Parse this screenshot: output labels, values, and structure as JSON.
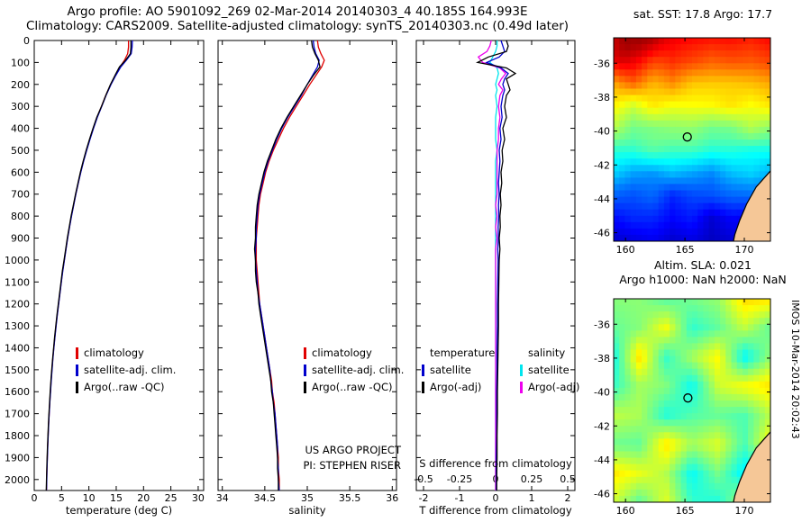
{
  "header": {
    "line1": "Argo profile: AO 5901092_269 02-Mar-2014 20140303_4 40.185S 164.993E",
    "line2": "Climatology: CARS2009. Satellite-adjusted climatology: synTS_20140303.nc (0.49d later)"
  },
  "annotations": {
    "project_line1": "US ARGO PROJECT",
    "project_line2": "PI: STEPHEN RISER",
    "vertical_stamp": "IMOS 10-Mar-2014 20:02:43"
  },
  "colors": {
    "climatology": "#e00000",
    "satellite": "#0000cc",
    "argo": "#000000",
    "sat_salinity": "#00e5ee",
    "argo_salinity": "#ee00ee",
    "land": "#f5c797",
    "coast": "#000000",
    "axis": "#000000"
  },
  "chart_data": [
    {
      "id": "temperature_profile",
      "type": "line",
      "xlabel": "temperature (deg C)",
      "ylabel": "depth",
      "xlim": [
        0,
        31
      ],
      "xticks": [
        0,
        5,
        10,
        15,
        20,
        25,
        30
      ],
      "ylim": [
        0,
        2050
      ],
      "yticks": [
        0,
        100,
        200,
        300,
        400,
        500,
        600,
        700,
        800,
        900,
        1000,
        1100,
        1200,
        1300,
        1400,
        1500,
        1600,
        1700,
        1800,
        1900,
        2000
      ],
      "ytick_labels": true,
      "depths": [
        0,
        30,
        60,
        90,
        120,
        160,
        200,
        250,
        300,
        350,
        400,
        450,
        500,
        550,
        600,
        650,
        700,
        750,
        800,
        850,
        900,
        950,
        1000,
        1050,
        1100,
        1150,
        1200,
        1250,
        1300,
        1350,
        1400,
        1450,
        1500,
        1550,
        1600,
        1650,
        1700,
        1750,
        1800,
        1850,
        1900,
        1950,
        2000,
        2050
      ],
      "series": [
        {
          "name": "climatology",
          "color": "climatology",
          "values": [
            17.25,
            17.25,
            17.1,
            16.5,
            15.7,
            14.8,
            14.0,
            13.1,
            12.3,
            11.5,
            10.8,
            10.15,
            9.55,
            9.0,
            8.5,
            8.05,
            7.6,
            7.2,
            6.8,
            6.45,
            6.1,
            5.8,
            5.5,
            5.2,
            4.95,
            4.7,
            4.45,
            4.2,
            3.98,
            3.77,
            3.58,
            3.4,
            3.24,
            3.09,
            2.96,
            2.84,
            2.73,
            2.63,
            2.54,
            2.46,
            2.39,
            2.33,
            2.28,
            2.24
          ]
        },
        {
          "name": "satellite-adj. clim.",
          "color": "satellite",
          "values": [
            17.95,
            17.9,
            17.75,
            16.85,
            15.85,
            14.9,
            14.05,
            13.15,
            12.35,
            11.55,
            10.85,
            10.2,
            9.6,
            9.03,
            8.53,
            8.07,
            7.62,
            7.22,
            6.82,
            6.47,
            6.12,
            5.82,
            5.52,
            5.22,
            4.97,
            4.72,
            4.47,
            4.22,
            4.0,
            3.79,
            3.6,
            3.42,
            3.26,
            3.11,
            2.98,
            2.86,
            2.74,
            2.64,
            2.55,
            2.47,
            2.4,
            2.34,
            2.29,
            2.25
          ]
        },
        {
          "name": "Argo(..raw -QC)",
          "color": "argo",
          "values": [
            17.7,
            17.7,
            17.6,
            16.7,
            15.6,
            14.75,
            13.95,
            13.1,
            12.3,
            11.45,
            10.75,
            10.1,
            9.5,
            8.95,
            8.45,
            8.0,
            7.55,
            7.15,
            6.75,
            6.4,
            6.05,
            5.75,
            5.45,
            5.15,
            4.9,
            4.65,
            4.4,
            4.16,
            3.94,
            3.73,
            3.54,
            3.36,
            3.2,
            3.05,
            2.92,
            2.8,
            2.69,
            2.59,
            2.5,
            2.42,
            2.35,
            2.29,
            2.24,
            2.2
          ]
        }
      ],
      "legend": [
        {
          "label": "climatology",
          "color": "climatology"
        },
        {
          "label": "satellite-adj. clim.",
          "color": "satellite"
        },
        {
          "label": "Argo(..raw -QC)",
          "color": "argo"
        }
      ]
    },
    {
      "id": "salinity_profile",
      "type": "line",
      "xlabel": "salinity",
      "xlim": [
        33.95,
        36.05
      ],
      "xticks": [
        34,
        34.5,
        35,
        35.5,
        36
      ],
      "ylim": [
        0,
        2050
      ],
      "yticks": [
        0,
        100,
        200,
        300,
        400,
        500,
        600,
        700,
        800,
        900,
        1000,
        1100,
        1200,
        1300,
        1400,
        1500,
        1600,
        1700,
        1800,
        1900,
        2000
      ],
      "ytick_labels": false,
      "depths": [
        0,
        30,
        60,
        90,
        120,
        160,
        200,
        250,
        300,
        350,
        400,
        450,
        500,
        550,
        600,
        650,
        700,
        750,
        800,
        850,
        900,
        950,
        1000,
        1050,
        1100,
        1150,
        1200,
        1250,
        1300,
        1350,
        1400,
        1450,
        1500,
        1550,
        1600,
        1650,
        1700,
        1750,
        1800,
        1850,
        1900,
        1950,
        2000,
        2050
      ],
      "series": [
        {
          "name": "climatology",
          "color": "climatology",
          "values": [
            35.12,
            35.13,
            35.16,
            35.2,
            35.17,
            35.1,
            35.03,
            34.95,
            34.87,
            34.79,
            34.72,
            34.66,
            34.6,
            34.55,
            34.51,
            34.48,
            34.45,
            34.43,
            34.42,
            34.41,
            34.4,
            34.4,
            34.4,
            34.41,
            34.42,
            34.43,
            34.44,
            34.46,
            34.48,
            34.5,
            34.52,
            34.54,
            34.56,
            34.58,
            34.59,
            34.61,
            34.62,
            34.63,
            34.64,
            34.65,
            34.66,
            34.66,
            34.67,
            34.67
          ]
        },
        {
          "name": "satellite-adj. clim.",
          "color": "satellite",
          "values": [
            35.07,
            35.08,
            35.1,
            35.14,
            35.12,
            35.06,
            35.0,
            34.93,
            34.85,
            34.77,
            34.7,
            34.64,
            34.59,
            34.54,
            34.5,
            34.47,
            34.44,
            34.42,
            34.41,
            34.4,
            34.4,
            34.39,
            34.39,
            34.4,
            34.41,
            34.42,
            34.44,
            34.46,
            34.48,
            34.5,
            34.52,
            34.54,
            34.56,
            34.57,
            34.59,
            34.6,
            34.62,
            34.63,
            34.64,
            34.65,
            34.65,
            34.66,
            34.66,
            34.67
          ]
        },
        {
          "name": "Argo(..raw -QC)",
          "color": "argo",
          "values": [
            35.05,
            35.06,
            35.09,
            35.13,
            35.15,
            35.07,
            35.0,
            34.92,
            34.84,
            34.76,
            34.69,
            34.63,
            34.58,
            34.53,
            34.49,
            34.46,
            34.43,
            34.41,
            34.4,
            34.39,
            34.39,
            34.38,
            34.39,
            34.39,
            34.4,
            34.42,
            34.43,
            34.45,
            34.47,
            34.49,
            34.51,
            34.53,
            34.55,
            34.57,
            34.58,
            34.6,
            34.61,
            34.62,
            34.63,
            34.64,
            34.65,
            34.65,
            34.66,
            34.66
          ]
        }
      ],
      "legend": [
        {
          "label": "climatology",
          "color": "climatology"
        },
        {
          "label": "satellite-adj. clim.",
          "color": "satellite"
        },
        {
          "label": "Argo(..raw -QC)",
          "color": "argo"
        }
      ]
    },
    {
      "id": "difference_profile",
      "type": "line",
      "xlabel": "T difference from climatology",
      "xlabel2": "S difference from climatology",
      "xlim": [
        -2.2,
        2.2
      ],
      "xticks": [
        -2,
        -1,
        0,
        1,
        2
      ],
      "xlim2": [
        -0.55,
        0.55
      ],
      "xticks2": [
        -0.5,
        -0.25,
        0,
        0.25,
        0.5
      ],
      "ylim": [
        0,
        2050
      ],
      "yticks": [
        0,
        100,
        200,
        300,
        400,
        500,
        600,
        700,
        800,
        900,
        1000,
        1100,
        1200,
        1300,
        1400,
        1500,
        1600,
        1700,
        1800,
        1900,
        2000
      ],
      "ytick_labels": false,
      "depths": [
        0,
        25,
        50,
        75,
        100,
        125,
        150,
        175,
        200,
        225,
        250,
        300,
        350,
        400,
        450,
        500,
        550,
        600,
        650,
        700,
        750,
        800,
        850,
        900,
        950,
        1000,
        1100,
        1200,
        1300,
        1400,
        1500,
        1600,
        1700,
        1800,
        1900,
        2000,
        2050
      ],
      "series": [
        {
          "name": "salinity satellite",
          "color": "sat_salinity",
          "axis": "secondary",
          "values": [
            0.01,
            0.01,
            0.0,
            -0.02,
            -0.04,
            0.01,
            0.02,
            0.01,
            0.0,
            0.01,
            0.0,
            0.01,
            0.0,
            0.0,
            0.0,
            0.01,
            0.0,
            0.0,
            0.0,
            0.0,
            0.0,
            0.0,
            0.0,
            0.0,
            0.0,
            0.0,
            0.0,
            0.0,
            0.0,
            0.0,
            0.0,
            0.0,
            0.0,
            0.0,
            0.0,
            0.0,
            0.0
          ]
        },
        {
          "name": "salinity Argo(-adj)",
          "color": "argo_salinity",
          "axis": "secondary",
          "values": [
            -0.03,
            -0.04,
            -0.06,
            -0.12,
            -0.09,
            0.03,
            0.07,
            0.04,
            0.02,
            0.05,
            0.03,
            0.02,
            0.03,
            0.02,
            0.02,
            0.01,
            0.01,
            0.01,
            0.01,
            0.01,
            0.0,
            0.01,
            0.0,
            0.01,
            0.0,
            0.0,
            0.0,
            0.0,
            0.0,
            0.0,
            0.0,
            0.0,
            0.0,
            0.0,
            0.0,
            0.0,
            0.0
          ]
        },
        {
          "name": "temperature satellite",
          "color": "satellite",
          "values": [
            0.15,
            0.2,
            0.25,
            0.1,
            -0.25,
            0.15,
            0.35,
            0.25,
            0.2,
            0.25,
            0.2,
            0.15,
            0.18,
            0.12,
            0.15,
            0.1,
            0.12,
            0.1,
            0.08,
            0.1,
            0.08,
            0.09,
            0.07,
            0.08,
            0.06,
            0.07,
            0.06,
            0.05,
            0.05,
            0.04,
            0.04,
            0.03,
            0.03,
            0.03,
            0.02,
            0.02,
            0.02
          ]
        },
        {
          "name": "temperature Argo(-adj)",
          "color": "argo",
          "values": [
            0.3,
            0.35,
            0.3,
            -0.2,
            -0.5,
            0.3,
            0.55,
            0.3,
            0.35,
            0.4,
            0.3,
            0.25,
            0.3,
            0.2,
            0.25,
            0.18,
            0.2,
            0.15,
            0.17,
            0.13,
            0.15,
            0.12,
            0.13,
            0.1,
            0.12,
            0.1,
            0.09,
            0.08,
            0.08,
            0.07,
            0.06,
            0.05,
            0.05,
            0.04,
            0.04,
            0.03,
            0.03
          ]
        }
      ],
      "legend_cols": [
        {
          "header": "temperature",
          "items": [
            {
              "label": "satellite",
              "color": "satellite"
            },
            {
              "label": "Argo(-adj)",
              "color": "argo"
            }
          ]
        },
        {
          "header": "salinity",
          "items": [
            {
              "label": "satellite",
              "color": "sat_salinity"
            },
            {
              "label": "Argo(-adj)",
              "color": "argo_salinity"
            }
          ]
        }
      ]
    },
    {
      "id": "sst_map",
      "type": "heatmap",
      "title": "sat. SST: 17.8 Argo: 17.7",
      "sat_sst": 17.8,
      "argo_sst": 17.7,
      "lon_range": [
        159.0,
        172.2
      ],
      "lat_range": [
        -34.5,
        -46.5
      ],
      "lon_ticks": [
        160,
        165,
        170
      ],
      "lat_ticks": [
        -36,
        -38,
        -40,
        -42,
        -44,
        -46
      ],
      "domain": [
        6,
        23
      ],
      "base_rows": [
        [
          -34.5,
          20.8
        ],
        [
          -36,
          19.6
        ],
        [
          -37.5,
          17.6
        ],
        [
          -39,
          15.8
        ],
        [
          -40.5,
          14.2
        ],
        [
          -42,
          11.8
        ],
        [
          -43.5,
          9.6
        ],
        [
          -45,
          8.2
        ],
        [
          -46.5,
          7.2
        ]
      ],
      "blobs": [
        [
          160.3,
          -34.8,
          2.4,
          2.0
        ]
      ],
      "noise_amp": 0.7,
      "noise_grid": [
        9,
        10
      ],
      "seed": 7,
      "marker": [
        165.2,
        -40.35
      ],
      "land": [
        [
          172.4,
          -42.2
        ],
        [
          171.0,
          -43.3
        ],
        [
          170.2,
          -44.3
        ],
        [
          169.6,
          -45.3
        ],
        [
          169.2,
          -46.1
        ],
        [
          169.0,
          -46.8
        ],
        [
          172.4,
          -46.8
        ]
      ]
    },
    {
      "id": "sla_map",
      "type": "heatmap",
      "title_line1": "Altim. SLA: 0.021",
      "title_line2": "Argo h1000: NaN h2000: NaN",
      "altim_sla": 0.021,
      "argo_h1000": "NaN",
      "argo_h2000": "NaN",
      "lon_range": [
        159.0,
        172.2
      ],
      "lat_range": [
        -34.5,
        -46.5
      ],
      "lon_ticks": [
        160,
        165,
        170
      ],
      "lat_ticks": [
        -36,
        -38,
        -40,
        -42,
        -44,
        -46
      ],
      "domain": [
        -0.5,
        0.5
      ],
      "base_rows": [
        [
          -34.5,
          0.03
        ],
        [
          -46.5,
          0.0
        ]
      ],
      "blobs": [],
      "noise_amp": 0.17,
      "noise_grid": [
        7,
        8
      ],
      "seed": 21,
      "marker": [
        165.25,
        -40.35
      ],
      "land": [
        [
          172.4,
          -42.2
        ],
        [
          171.0,
          -43.3
        ],
        [
          170.2,
          -44.3
        ],
        [
          169.6,
          -45.3
        ],
        [
          169.2,
          -46.1
        ],
        [
          169.0,
          -46.8
        ],
        [
          172.4,
          -46.8
        ]
      ]
    }
  ]
}
